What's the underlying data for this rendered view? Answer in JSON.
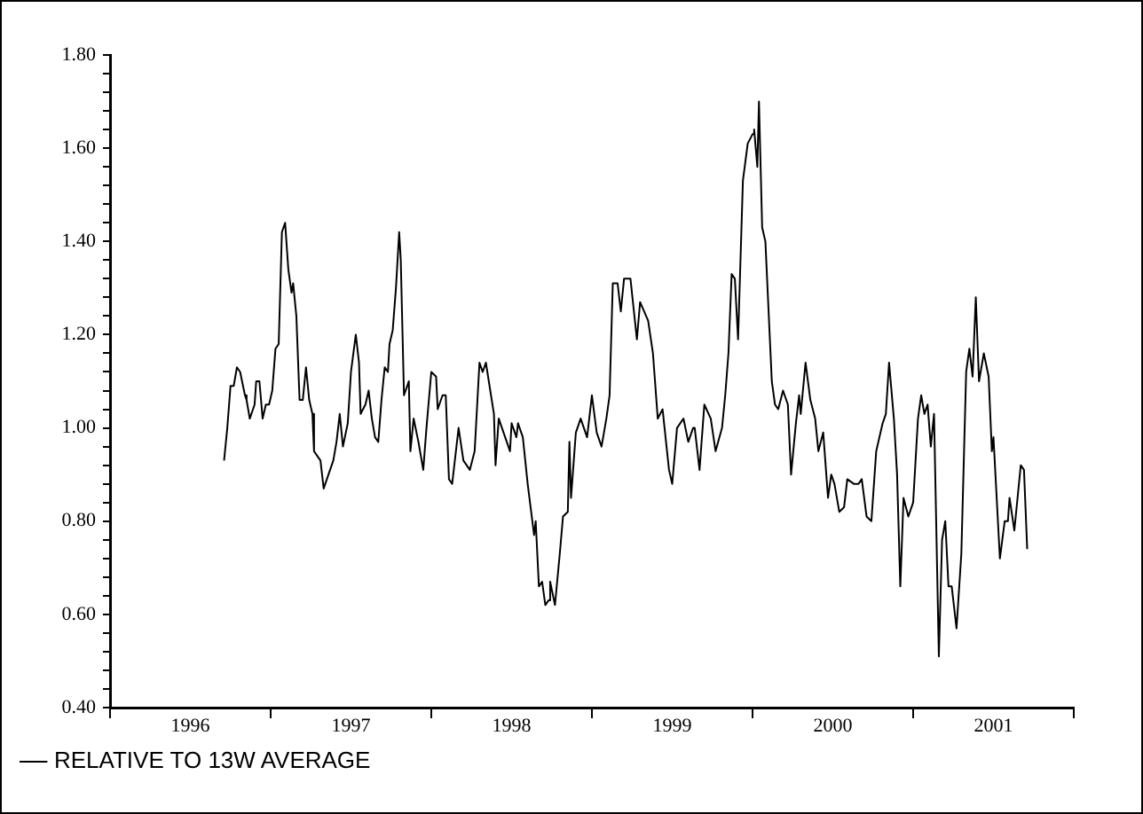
{
  "chart_data": {
    "type": "line",
    "legend": "bottom left",
    "grid": false,
    "marker": "none",
    "line_style": "solid",
    "xlim": [
      1996,
      2002
    ],
    "xticks": [
      {
        "value": 1996,
        "label": null
      },
      {
        "value": 1996.5,
        "label": "1996"
      },
      {
        "value": 1997,
        "label": null
      },
      {
        "value": 1997.5,
        "label": "1997"
      },
      {
        "value": 1998,
        "label": null
      },
      {
        "value": 1998.5,
        "label": "1998"
      },
      {
        "value": 1999,
        "label": null
      },
      {
        "value": 1999.5,
        "label": "1999"
      },
      {
        "value": 2000,
        "label": null
      },
      {
        "value": 2000.5,
        "label": "2000"
      },
      {
        "value": 2001,
        "label": null
      },
      {
        "value": 2001.5,
        "label": "2001"
      },
      {
        "value": 2002,
        "label": null
      }
    ],
    "ylim": [
      0.4,
      1.8
    ],
    "yticks": [
      {
        "value": 0.4,
        "label": "0.40"
      },
      {
        "value": 0.44,
        "label": null
      },
      {
        "value": 0.48,
        "label": null
      },
      {
        "value": 0.52,
        "label": null
      },
      {
        "value": 0.56,
        "label": null
      },
      {
        "value": 0.6,
        "label": "0.60"
      },
      {
        "value": 0.64,
        "label": null
      },
      {
        "value": 0.68,
        "label": null
      },
      {
        "value": 0.72,
        "label": null
      },
      {
        "value": 0.76,
        "label": null
      },
      {
        "value": 0.8,
        "label": "0.80"
      },
      {
        "value": 0.84,
        "label": null
      },
      {
        "value": 0.88,
        "label": null
      },
      {
        "value": 0.92,
        "label": null
      },
      {
        "value": 0.96,
        "label": null
      },
      {
        "value": 1.0,
        "label": "1.00"
      },
      {
        "value": 1.04,
        "label": null
      },
      {
        "value": 1.08,
        "label": null
      },
      {
        "value": 1.12,
        "label": null
      },
      {
        "value": 1.16,
        "label": null
      },
      {
        "value": 1.2,
        "label": "1.20"
      },
      {
        "value": 1.24,
        "label": null
      },
      {
        "value": 1.28,
        "label": null
      },
      {
        "value": 1.32,
        "label": null
      },
      {
        "value": 1.36,
        "label": null
      },
      {
        "value": 1.4,
        "label": "1.40"
      },
      {
        "value": 1.44,
        "label": null
      },
      {
        "value": 1.48,
        "label": null
      },
      {
        "value": 1.52,
        "label": null
      },
      {
        "value": 1.56,
        "label": null
      },
      {
        "value": 1.6,
        "label": "1.60"
      },
      {
        "value": 1.64,
        "label": null
      },
      {
        "value": 1.68,
        "label": null
      },
      {
        "value": 1.72,
        "label": null
      },
      {
        "value": 1.76,
        "label": null
      },
      {
        "value": 1.8,
        "label": "1.80"
      }
    ],
    "series": [
      {
        "name": "RELATIVE TO 13W AVERAGE",
        "color": "#000000",
        "x": [
          1996.71,
          1996.73,
          1996.75,
          1996.77,
          1996.79,
          1996.81,
          1996.84,
          1996.85,
          1996.87,
          1996.9,
          1996.91,
          1996.93,
          1996.95,
          1996.97,
          1996.99,
          1997.01,
          1997.03,
          1997.05,
          1997.07,
          1997.09,
          1997.11,
          1997.13,
          1997.14,
          1997.16,
          1997.18,
          1997.2,
          1997.22,
          1997.24,
          1997.26,
          1997.27,
          1997.31,
          1997.33,
          1997.36,
          1997.39,
          1997.41,
          1997.43,
          1997.45,
          1997.48,
          1997.5,
          1997.53,
          1997.55,
          1997.56,
          1997.59,
          1997.61,
          1997.63,
          1997.65,
          1997.67,
          1997.69,
          1997.71,
          1997.73,
          1997.74,
          1997.76,
          1997.78,
          1997.8,
          1997.81,
          1997.83,
          1997.86,
          1997.87,
          1997.89,
          1997.92,
          1997.95,
          1997.97,
          1998.0,
          1998.03,
          1998.04,
          1998.07,
          1998.09,
          1998.11,
          1998.13,
          1998.16,
          1998.17,
          1998.2,
          1998.24,
          1998.27,
          1998.3,
          1998.32,
          1998.34,
          1998.39,
          1998.4,
          1998.42,
          1998.45,
          1998.49,
          1998.5,
          1998.53,
          1998.54,
          1998.57,
          1998.6,
          1998.64,
          1998.65,
          1998.67,
          1998.69,
          1998.71,
          1998.73,
          1998.74,
          1998.77,
          1998.8,
          1998.82,
          1998.85,
          1998.86,
          1998.87,
          1998.9,
          1998.93,
          1998.97,
          1999.0,
          1999.03,
          1999.06,
          1999.09,
          1999.11,
          1999.13,
          1999.16,
          1999.18,
          1999.2,
          1999.24,
          1999.28,
          1999.3,
          1999.35,
          1999.38,
          1999.41,
          1999.44,
          1999.48,
          1999.5,
          1999.53,
          1999.57,
          1999.6,
          1999.63,
          1999.64,
          1999.67,
          1999.7,
          1999.74,
          1999.77,
          1999.81,
          1999.83,
          1999.85,
          1999.87,
          1999.89,
          1999.91,
          1999.94,
          1999.97,
          2000.0,
          2000.01,
          2000.03,
          2000.04,
          2000.06,
          2000.08,
          2000.12,
          2000.14,
          2000.16,
          2000.19,
          2000.22,
          2000.24,
          2000.27,
          2000.29,
          2000.3,
          2000.33,
          2000.36,
          2000.39,
          2000.41,
          2000.44,
          2000.47,
          2000.49,
          2000.51,
          2000.54,
          2000.57,
          2000.59,
          2000.63,
          2000.66,
          2000.68,
          2000.71,
          2000.74,
          2000.77,
          2000.81,
          2000.83,
          2000.85,
          2000.88,
          2000.9,
          2000.92,
          2000.94,
          2000.97,
          2001.0,
          2001.03,
          2001.05,
          2001.07,
          2001.09,
          2001.11,
          2001.13,
          2001.16,
          2001.18,
          2001.2,
          2001.22,
          2001.24,
          2001.27,
          2001.3,
          2001.33,
          2001.35,
          2001.37,
          2001.39,
          2001.41,
          2001.44,
          2001.47,
          2001.49,
          2001.5,
          2001.54,
          2001.57,
          2001.59,
          2001.6,
          2001.63,
          2001.67,
          2001.69,
          2001.71
        ],
        "values": [
          0.93,
          1.0,
          1.09,
          1.09,
          1.13,
          1.12,
          1.07,
          1.06,
          1.02,
          1.05,
          1.1,
          1.1,
          1.02,
          1.05,
          1.05,
          1.08,
          1.17,
          1.18,
          1.42,
          1.44,
          1.34,
          1.29,
          1.31,
          1.24,
          1.06,
          1.06,
          1.13,
          1.06,
          1.03,
          0.95,
          0.93,
          0.87,
          0.9,
          0.93,
          0.97,
          1.03,
          0.96,
          1.01,
          1.12,
          1.2,
          1.14,
          1.03,
          1.05,
          1.08,
          1.02,
          0.98,
          0.97,
          1.06,
          1.13,
          1.12,
          1.18,
          1.21,
          1.3,
          1.42,
          1.36,
          1.07,
          1.1,
          0.95,
          1.02,
          0.97,
          0.91,
          1.0,
          1.12,
          1.11,
          1.04,
          1.07,
          1.07,
          0.89,
          0.88,
          0.97,
          1.0,
          0.93,
          0.91,
          0.95,
          1.14,
          1.12,
          1.14,
          1.03,
          0.92,
          1.02,
          0.99,
          0.95,
          1.01,
          0.98,
          1.01,
          0.98,
          0.88,
          0.77,
          0.8,
          0.66,
          0.67,
          0.62,
          0.63,
          0.67,
          0.62,
          0.73,
          0.81,
          0.82,
          0.97,
          0.85,
          0.99,
          1.02,
          0.98,
          1.07,
          0.99,
          0.96,
          1.02,
          1.07,
          1.31,
          1.31,
          1.25,
          1.32,
          1.32,
          1.19,
          1.27,
          1.23,
          1.16,
          1.02,
          1.04,
          0.91,
          0.88,
          1.0,
          1.02,
          0.97,
          1.0,
          1.0,
          0.91,
          1.05,
          1.02,
          0.95,
          1.0,
          1.07,
          1.16,
          1.33,
          1.32,
          1.19,
          1.53,
          1.61,
          1.63,
          1.64,
          1.56,
          1.7,
          1.43,
          1.4,
          1.1,
          1.05,
          1.04,
          1.08,
          1.05,
          0.9,
          1.01,
          1.07,
          1.03,
          1.14,
          1.06,
          1.02,
          0.95,
          0.99,
          0.85,
          0.9,
          0.88,
          0.82,
          0.83,
          0.89,
          0.88,
          0.88,
          0.89,
          0.81,
          0.8,
          0.95,
          1.01,
          1.03,
          1.14,
          1.02,
          0.9,
          0.66,
          0.85,
          0.81,
          0.84,
          1.02,
          1.07,
          1.03,
          1.05,
          0.96,
          1.03,
          0.51,
          0.76,
          0.8,
          0.66,
          0.66,
          0.57,
          0.73,
          1.12,
          1.17,
          1.11,
          1.28,
          1.1,
          1.16,
          1.11,
          0.95,
          0.98,
          0.72,
          0.8,
          0.8,
          0.85,
          0.78,
          0.92,
          0.91,
          0.74
        ]
      }
    ]
  }
}
